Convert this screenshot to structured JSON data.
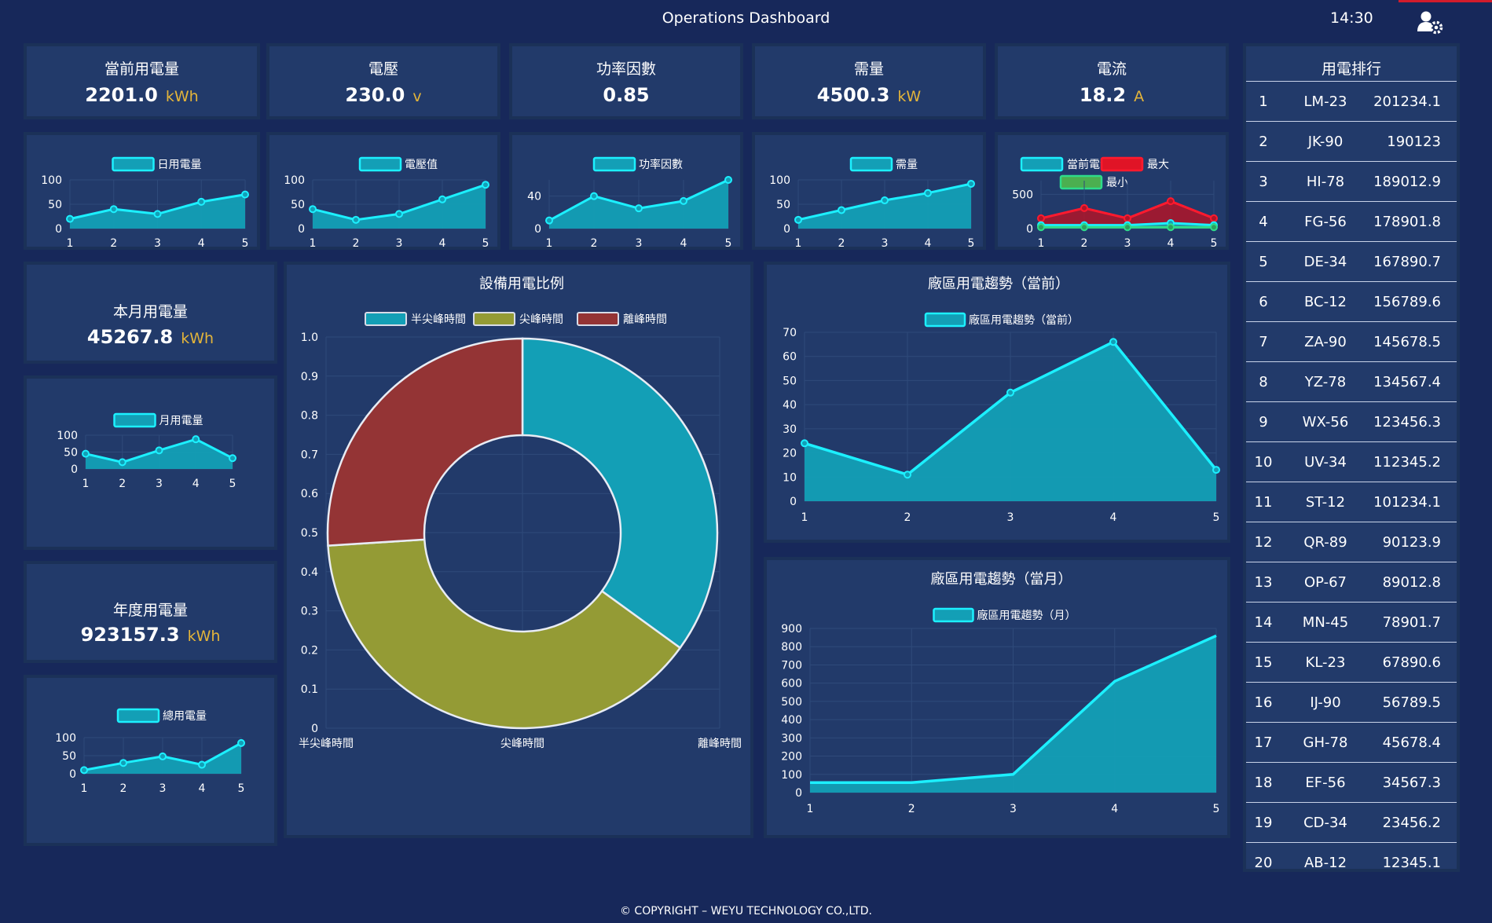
{
  "header": {
    "title": "Operations Dashboard",
    "time": "14:30"
  },
  "colors": {
    "cyan": "#1cf0ff",
    "fill": "#139fb6",
    "olive": "#949b35",
    "red": "#943435",
    "green": "#4caf50",
    "unit": "#e3b43a"
  },
  "stats": [
    {
      "label": "當前用電量",
      "value": "2201.0",
      "unit": "kWh"
    },
    {
      "label": "電壓",
      "value": "230.0",
      "unit": "v"
    },
    {
      "label": "功率因數",
      "value": "0.85",
      "unit": ""
    },
    {
      "label": "需量",
      "value": "4500.3",
      "unit": "kW"
    },
    {
      "label": "電流",
      "value": "18.2",
      "unit": "A"
    }
  ],
  "month_stat": {
    "label": "本月用電量",
    "value": "45267.8",
    "unit": "kWh"
  },
  "year_stat": {
    "label": "年度用電量",
    "value": "923157.3",
    "unit": "kWh"
  },
  "chart_data": [
    {
      "id": "daily",
      "type": "area",
      "x": [
        1,
        2,
        3,
        4,
        5
      ],
      "yticks": [
        0,
        50,
        100
      ],
      "ylim": [
        0,
        100
      ],
      "series": [
        {
          "name": "日用電量",
          "values": [
            20,
            40,
            30,
            55,
            70
          ]
        }
      ]
    },
    {
      "id": "voltage",
      "type": "area",
      "x": [
        1,
        2,
        3,
        4,
        5
      ],
      "yticks": [
        0,
        50,
        100
      ],
      "ylim": [
        0,
        100
      ],
      "series": [
        {
          "name": "電壓值",
          "values": [
            40,
            18,
            30,
            60,
            90
          ]
        }
      ]
    },
    {
      "id": "pf",
      "type": "area",
      "x": [
        1,
        2,
        3,
        4,
        5
      ],
      "yticks": [
        0,
        40
      ],
      "ylim": [
        0,
        60
      ],
      "series": [
        {
          "name": "功率因數",
          "values": [
            10,
            40,
            25,
            34,
            60
          ]
        }
      ]
    },
    {
      "id": "demand",
      "type": "area",
      "x": [
        1,
        2,
        3,
        4,
        5
      ],
      "yticks": [
        0,
        50,
        100
      ],
      "ylim": [
        0,
        100
      ],
      "series": [
        {
          "name": "需量",
          "values": [
            18,
            38,
            58,
            73,
            92
          ]
        }
      ]
    },
    {
      "id": "current",
      "type": "area",
      "x": [
        1,
        2,
        3,
        4,
        5
      ],
      "yticks": [
        0,
        500
      ],
      "ylim": [
        0,
        700
      ],
      "series": [
        {
          "name": "當前電流",
          "values": [
            50,
            50,
            50,
            80,
            50
          ]
        },
        {
          "name": "最大",
          "values": [
            150,
            300,
            150,
            400,
            150
          ]
        },
        {
          "name": "最小",
          "values": [
            20,
            20,
            20,
            20,
            20
          ]
        }
      ]
    },
    {
      "id": "monthly",
      "type": "area",
      "x": [
        1,
        2,
        3,
        4,
        5
      ],
      "yticks": [
        0,
        50,
        100
      ],
      "ylim": [
        0,
        100
      ],
      "series": [
        {
          "name": "月用電量",
          "values": [
            45,
            20,
            55,
            88,
            32
          ]
        }
      ]
    },
    {
      "id": "total",
      "type": "area",
      "x": [
        1,
        2,
        3,
        4,
        5
      ],
      "yticks": [
        0,
        50,
        100
      ],
      "ylim": [
        0,
        100
      ],
      "series": [
        {
          "name": "總用電量",
          "values": [
            10,
            30,
            48,
            25,
            85
          ]
        }
      ]
    },
    {
      "id": "ratio",
      "type": "pie",
      "title": "設備用電比例",
      "categories": [
        "半尖峰時間",
        "尖峰時間",
        "離峰時間"
      ],
      "values": [
        35,
        39,
        26
      ],
      "yticks": [
        "0",
        "0.1",
        "0.2",
        "0.3",
        "0.4",
        "0.5",
        "0.6",
        "0.7",
        "0.8",
        "0.9",
        "1.0"
      ]
    },
    {
      "id": "plant_now",
      "type": "area",
      "title": "廠區用電趨勢（當前）",
      "x": [
        1,
        2,
        3,
        4,
        5
      ],
      "yticks": [
        0,
        10,
        20,
        30,
        40,
        50,
        60,
        70
      ],
      "ylim": [
        0,
        70
      ],
      "series": [
        {
          "name": "廠區用電趨勢（當前）",
          "values": [
            24,
            11,
            45,
            66,
            13
          ]
        }
      ]
    },
    {
      "id": "plant_month",
      "type": "area",
      "title": "廠區用電趨勢（當月）",
      "x": [
        1,
        2,
        3,
        4,
        5
      ],
      "yticks": [
        0,
        100,
        200,
        300,
        400,
        500,
        600,
        700,
        800,
        900
      ],
      "ylim": [
        0,
        900
      ],
      "series": [
        {
          "name": "廠區用電趨勢（月）",
          "values": [
            55,
            55,
            100,
            610,
            860
          ]
        }
      ]
    }
  ],
  "ranking": {
    "title": "用電排行",
    "rows": [
      {
        "rank": "1",
        "code": "LM-23",
        "value": "201234.1"
      },
      {
        "rank": "2",
        "code": "JK-90",
        "value": "190123"
      },
      {
        "rank": "3",
        "code": "HI-78",
        "value": "189012.9"
      },
      {
        "rank": "4",
        "code": "FG-56",
        "value": "178901.8"
      },
      {
        "rank": "5",
        "code": "DE-34",
        "value": "167890.7"
      },
      {
        "rank": "6",
        "code": "BC-12",
        "value": "156789.6"
      },
      {
        "rank": "7",
        "code": "ZA-90",
        "value": "145678.5"
      },
      {
        "rank": "8",
        "code": "YZ-78",
        "value": "134567.4"
      },
      {
        "rank": "9",
        "code": "WX-56",
        "value": "123456.3"
      },
      {
        "rank": "10",
        "code": "UV-34",
        "value": "112345.2"
      },
      {
        "rank": "11",
        "code": "ST-12",
        "value": "101234.1"
      },
      {
        "rank": "12",
        "code": "QR-89",
        "value": "90123.9"
      },
      {
        "rank": "13",
        "code": "OP-67",
        "value": "89012.8"
      },
      {
        "rank": "14",
        "code": "MN-45",
        "value": "78901.7"
      },
      {
        "rank": "15",
        "code": "KL-23",
        "value": "67890.6"
      },
      {
        "rank": "16",
        "code": "IJ-90",
        "value": "56789.5"
      },
      {
        "rank": "17",
        "code": "GH-78",
        "value": "45678.4"
      },
      {
        "rank": "18",
        "code": "EF-56",
        "value": "34567.3"
      },
      {
        "rank": "19",
        "code": "CD-34",
        "value": "23456.2"
      },
      {
        "rank": "20",
        "code": "AB-12",
        "value": "12345.1"
      }
    ]
  },
  "footer": {
    "text": "© COPYRIGHT – WEYU TECHNOLOGY CO.,LTD."
  }
}
